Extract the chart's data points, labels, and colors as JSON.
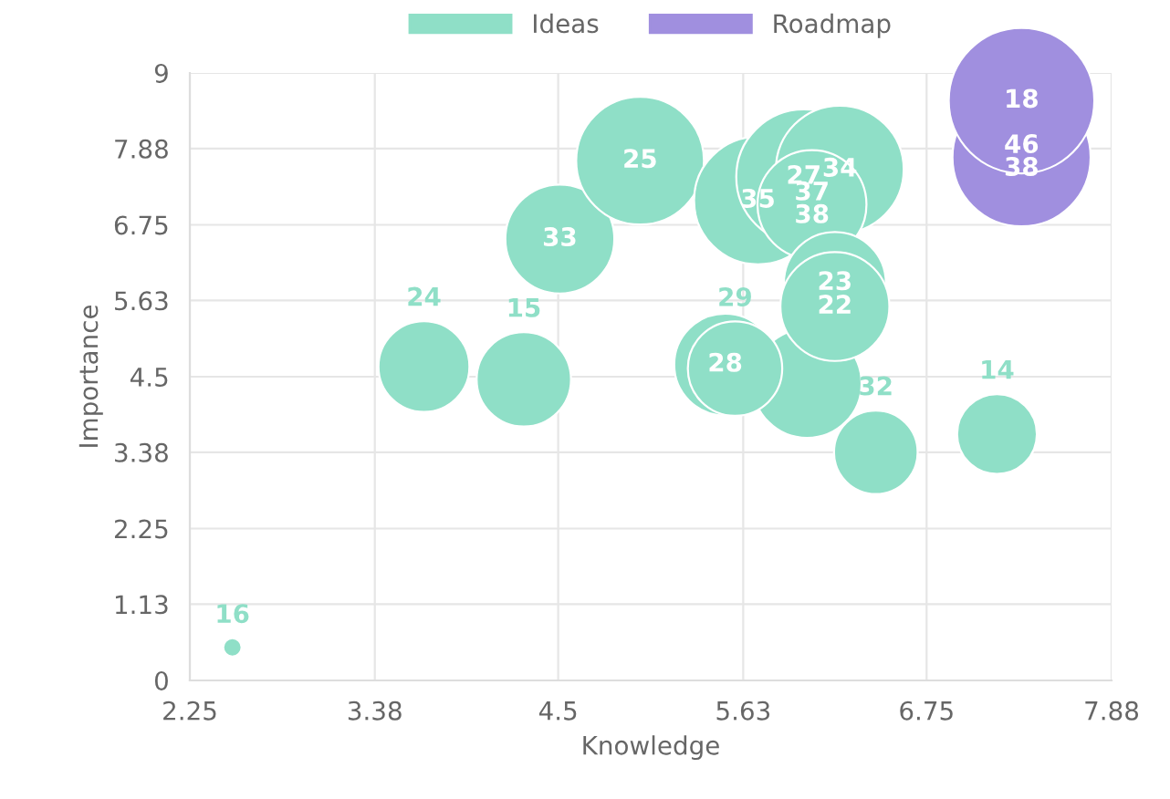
{
  "chart_data": {
    "type": "bubble",
    "xlabel": "Knowledge",
    "ylabel": "Importance",
    "xlim": [
      2.25,
      7.88
    ],
    "xticks": [
      2.25,
      3.38,
      4.5,
      5.63,
      6.75,
      7.88
    ],
    "ylim": [
      0,
      9
    ],
    "yticks": [
      0,
      1.13,
      2.25,
      3.38,
      4.5,
      5.63,
      6.75,
      7.88,
      9
    ],
    "grid": true,
    "legend": "top",
    "series": [
      {
        "name": "Ideas",
        "color": "#8fdfc7",
        "x": [
          2.51,
          3.68,
          4.29,
          4.51,
          5.0,
          5.72,
          6.0,
          6.22,
          6.05,
          6.02,
          6.19,
          6.19,
          5.52,
          5.58,
          6.44,
          7.18
        ],
        "values": [
          0.49,
          4.65,
          4.46,
          6.54,
          7.7,
          7.11,
          7.46,
          7.57,
          7.05,
          4.4,
          5.89,
          5.54,
          4.68,
          4.62,
          3.38,
          3.65
        ],
        "sizes": [
          0.016,
          0.39,
          0.42,
          0.56,
          0.77,
          0.77,
          0.86,
          0.77,
          0.56,
          0.56,
          0.49,
          0.56,
          0.49,
          0.42,
          0.33,
          0.3
        ]
      },
      {
        "name": "Roadmap",
        "color": "#a08fdf",
        "x": [
          7.33,
          7.33
        ],
        "values": [
          7.75,
          8.59
        ],
        "sizes": [
          0.9,
          1.0
        ]
      }
    ],
    "annotations": [
      {
        "text": "16",
        "x": 2.51,
        "y": 0.49
      },
      {
        "text": "24",
        "x": 3.68,
        "y": 4.65
      },
      {
        "text": "15",
        "x": 4.29,
        "y": 4.46
      },
      {
        "text": "33",
        "x": 4.51,
        "y": 6.54
      },
      {
        "text": "25",
        "x": 5.0,
        "y": 7.7
      },
      {
        "text": "35",
        "x": 5.72,
        "y": 7.11
      },
      {
        "text": "27",
        "x": 6.0,
        "y": 7.46
      },
      {
        "text": "34",
        "x": 6.22,
        "y": 7.57
      },
      {
        "text": "37",
        "x": 6.05,
        "y": 7.05
      },
      {
        "text": "38",
        "x": 6.05,
        "y": 7.05
      },
      {
        "text": "23",
        "x": 6.19,
        "y": 5.89
      },
      {
        "text": "22",
        "x": 6.19,
        "y": 5.54
      },
      {
        "text": "28",
        "x": 5.52,
        "y": 4.68
      },
      {
        "text": "29",
        "x": 5.58,
        "y": 4.62
      },
      {
        "text": "32",
        "x": 6.44,
        "y": 3.38
      },
      {
        "text": "14",
        "x": 7.18,
        "y": 3.65
      },
      {
        "text": "46",
        "x": 7.33,
        "y": 7.75
      },
      {
        "text": "38",
        "x": 7.33,
        "y": 7.75
      },
      {
        "text": "18",
        "x": 7.33,
        "y": 8.59
      }
    ]
  }
}
